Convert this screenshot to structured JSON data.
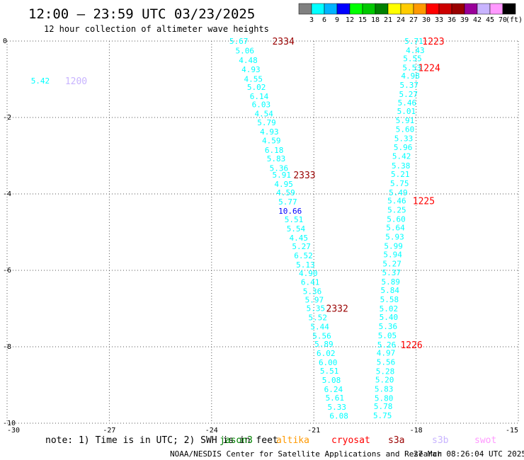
{
  "title": "12:00 – 23:59 UTC 03/23/2025",
  "subtitle": "12 hour collection of altimeter wave heights",
  "footer_note": "note:  1) Time is in UTC; 2) SWH is in feet",
  "credit": "NOAA/NESDIS Center for Satellite Applications and Research",
  "timestamp": "27 Mar 08:26:04 UTC 2025",
  "missions": [
    {
      "name": "jason3",
      "color": "#008000"
    },
    {
      "name": "altika",
      "color": "#ff9900"
    },
    {
      "name": "cryosat",
      "color": "#ff0000"
    },
    {
      "name": "s3a",
      "color": "#990000"
    },
    {
      "name": "s3b",
      "color": "#c8b4ff"
    },
    {
      "name": "swot",
      "color": "#ff99ff"
    }
  ],
  "colorbar": {
    "colors": [
      "#808080",
      "#00ffff",
      "#00b4ff",
      "#0000ff",
      "#00ff00",
      "#00c800",
      "#008000",
      "#ffff00",
      "#ffcc00",
      "#ff9900",
      "#ff0000",
      "#cc0000",
      "#990000",
      "#990099",
      "#c8b4ff",
      "#ff99ff",
      "#000000"
    ],
    "labels": [
      "3",
      "6",
      "9",
      "12",
      "15",
      "18",
      "21",
      "24",
      "27",
      "30",
      "33",
      "36",
      "39",
      "42",
      "45",
      "70"
    ],
    "unit": "(ft)"
  },
  "chart_data": {
    "type": "scatter",
    "xlim": [
      -30,
      -15
    ],
    "ylim": [
      -10,
      0
    ],
    "xticks": [
      "-30",
      "-27",
      "-24",
      "-21",
      "-18",
      "-15"
    ],
    "yticks": [
      "0",
      "-2",
      "-4",
      "-6",
      "-8",
      "-10"
    ],
    "grid": true,
    "points": [
      {
        "x": -29.3,
        "y": -1.04,
        "label": "5.42",
        "color": "#00ffff"
      },
      {
        "x": -23.48,
        "y": 0.0,
        "label": "5.67",
        "color": "#00ffff"
      },
      {
        "x": -23.3,
        "y": -0.25,
        "label": "5.06",
        "color": "#00ffff"
      },
      {
        "x": -23.2,
        "y": -0.5,
        "label": "4.48",
        "color": "#00ffff"
      },
      {
        "x": -23.12,
        "y": -0.74,
        "label": "4.93",
        "color": "#00ffff"
      },
      {
        "x": -23.05,
        "y": -0.99,
        "label": "4.55",
        "color": "#00ffff"
      },
      {
        "x": -22.96,
        "y": -1.2,
        "label": "5.02",
        "color": "#00ffff"
      },
      {
        "x": -22.88,
        "y": -1.44,
        "label": "6.14",
        "color": "#00ffff"
      },
      {
        "x": -22.82,
        "y": -1.66,
        "label": "6.03",
        "color": "#00ffff"
      },
      {
        "x": -22.74,
        "y": -1.9,
        "label": "4.54",
        "color": "#00ffff"
      },
      {
        "x": -22.66,
        "y": -2.13,
        "label": "5.79",
        "color": "#00ffff"
      },
      {
        "x": -22.58,
        "y": -2.37,
        "label": "4.93",
        "color": "#00ffff"
      },
      {
        "x": -22.52,
        "y": -2.6,
        "label": "4.59",
        "color": "#00ffff"
      },
      {
        "x": -22.44,
        "y": -2.85,
        "label": "6.18",
        "color": "#00ffff"
      },
      {
        "x": -22.38,
        "y": -3.07,
        "label": "5.83",
        "color": "#00ffff"
      },
      {
        "x": -22.3,
        "y": -3.32,
        "label": "5.36",
        "color": "#00ffff"
      },
      {
        "x": -22.22,
        "y": -3.5,
        "label": "5.91",
        "color": "#00ffff"
      },
      {
        "x": -22.16,
        "y": -3.74,
        "label": "4.95",
        "color": "#00ffff"
      },
      {
        "x": -22.1,
        "y": -3.96,
        "label": "4.59",
        "color": "#00ffff"
      },
      {
        "x": -22.04,
        "y": -4.2,
        "label": "5.77",
        "color": "#00ffff"
      },
      {
        "x": -22.04,
        "y": -4.44,
        "label": "10.66",
        "color": "#0000ff"
      },
      {
        "x": -21.86,
        "y": -4.67,
        "label": "5.51",
        "color": "#00ffff"
      },
      {
        "x": -21.8,
        "y": -4.91,
        "label": "5.54",
        "color": "#00ffff"
      },
      {
        "x": -21.72,
        "y": -5.15,
        "label": "4.45",
        "color": "#00ffff"
      },
      {
        "x": -21.64,
        "y": -5.37,
        "label": "5.27",
        "color": "#00ffff"
      },
      {
        "x": -21.58,
        "y": -5.61,
        "label": "6.52",
        "color": "#00ffff"
      },
      {
        "x": -21.52,
        "y": -5.85,
        "label": "5.13",
        "color": "#00ffff"
      },
      {
        "x": -21.44,
        "y": -6.07,
        "label": "4.90",
        "color": "#00ffff"
      },
      {
        "x": -21.38,
        "y": -6.31,
        "label": "6.41",
        "color": "#00ffff"
      },
      {
        "x": -21.32,
        "y": -6.55,
        "label": "5.36",
        "color": "#00ffff"
      },
      {
        "x": -21.26,
        "y": -6.77,
        "label": "5.97",
        "color": "#00ffff"
      },
      {
        "x": -21.22,
        "y": -6.99,
        "label": "5.35",
        "color": "#00ffff"
      },
      {
        "x": -21.16,
        "y": -7.23,
        "label": "5.52",
        "color": "#00ffff"
      },
      {
        "x": -21.1,
        "y": -7.47,
        "label": "5.44",
        "color": "#00ffff"
      },
      {
        "x": -21.04,
        "y": -7.71,
        "label": "5.56",
        "color": "#00ffff"
      },
      {
        "x": -20.98,
        "y": -7.93,
        "label": "5.89",
        "color": "#00ffff"
      },
      {
        "x": -20.92,
        "y": -8.17,
        "label": "6.02",
        "color": "#00ffff"
      },
      {
        "x": -20.86,
        "y": -8.41,
        "label": "6.00",
        "color": "#00ffff"
      },
      {
        "x": -20.82,
        "y": -8.63,
        "label": "5.51",
        "color": "#00ffff"
      },
      {
        "x": -20.76,
        "y": -8.87,
        "label": "5.08",
        "color": "#00ffff"
      },
      {
        "x": -20.7,
        "y": -9.11,
        "label": "6.24",
        "color": "#00ffff"
      },
      {
        "x": -20.66,
        "y": -9.33,
        "label": "5.61",
        "color": "#00ffff"
      },
      {
        "x": -20.6,
        "y": -9.57,
        "label": "5.33",
        "color": "#00ffff"
      },
      {
        "x": -20.54,
        "y": -9.81,
        "label": "6.08",
        "color": "#00ffff"
      },
      {
        "x": -18.34,
        "y": 0.0,
        "label": "5.71",
        "color": "#00ffff"
      },
      {
        "x": -18.3,
        "y": -0.24,
        "label": "4.43",
        "color": "#00ffff"
      },
      {
        "x": -18.38,
        "y": -0.45,
        "label": "5.55",
        "color": "#00ffff"
      },
      {
        "x": -18.4,
        "y": -0.69,
        "label": "5.53",
        "color": "#00ffff"
      },
      {
        "x": -18.44,
        "y": -0.91,
        "label": "4.98",
        "color": "#00ffff"
      },
      {
        "x": -18.48,
        "y": -1.15,
        "label": "5.37",
        "color": "#00ffff"
      },
      {
        "x": -18.5,
        "y": -1.39,
        "label": "5.27",
        "color": "#00ffff"
      },
      {
        "x": -18.54,
        "y": -1.61,
        "label": "5.46",
        "color": "#00ffff"
      },
      {
        "x": -18.56,
        "y": -1.83,
        "label": "5.01",
        "color": "#00ffff"
      },
      {
        "x": -18.6,
        "y": -2.07,
        "label": "5.91",
        "color": "#00ffff"
      },
      {
        "x": -18.6,
        "y": -2.31,
        "label": "5.60",
        "color": "#00ffff"
      },
      {
        "x": -18.64,
        "y": -2.55,
        "label": "5.33",
        "color": "#00ffff"
      },
      {
        "x": -18.66,
        "y": -2.78,
        "label": "5.96",
        "color": "#00ffff"
      },
      {
        "x": -18.7,
        "y": -3.01,
        "label": "5.42",
        "color": "#00ffff"
      },
      {
        "x": -18.72,
        "y": -3.26,
        "label": "5.38",
        "color": "#00ffff"
      },
      {
        "x": -18.74,
        "y": -3.48,
        "label": "5.21",
        "color": "#00ffff"
      },
      {
        "x": -18.76,
        "y": -3.72,
        "label": "5.75",
        "color": "#00ffff"
      },
      {
        "x": -18.8,
        "y": -3.96,
        "label": "5.49",
        "color": "#00ffff"
      },
      {
        "x": -18.84,
        "y": -4.18,
        "label": "5.46",
        "color": "#00ffff"
      },
      {
        "x": -18.84,
        "y": -4.42,
        "label": "5.25",
        "color": "#00ffff"
      },
      {
        "x": -18.86,
        "y": -4.66,
        "label": "5.60",
        "color": "#00ffff"
      },
      {
        "x": -18.88,
        "y": -4.88,
        "label": "5.64",
        "color": "#00ffff"
      },
      {
        "x": -18.9,
        "y": -5.12,
        "label": "5.93",
        "color": "#00ffff"
      },
      {
        "x": -18.94,
        "y": -5.36,
        "label": "5.99",
        "color": "#00ffff"
      },
      {
        "x": -18.96,
        "y": -5.58,
        "label": "5.94",
        "color": "#00ffff"
      },
      {
        "x": -18.98,
        "y": -5.82,
        "label": "5.27",
        "color": "#00ffff"
      },
      {
        "x": -19.0,
        "y": -6.06,
        "label": "5.37",
        "color": "#00ffff"
      },
      {
        "x": -19.02,
        "y": -6.3,
        "label": "5.89",
        "color": "#00ffff"
      },
      {
        "x": -19.04,
        "y": -6.52,
        "label": "5.84",
        "color": "#00ffff"
      },
      {
        "x": -19.06,
        "y": -6.76,
        "label": "5.58",
        "color": "#00ffff"
      },
      {
        "x": -19.08,
        "y": -7.0,
        "label": "5.02",
        "color": "#00ffff"
      },
      {
        "x": -19.08,
        "y": -7.22,
        "label": "5.40",
        "color": "#00ffff"
      },
      {
        "x": -19.1,
        "y": -7.46,
        "label": "5.36",
        "color": "#00ffff"
      },
      {
        "x": -19.12,
        "y": -7.7,
        "label": "5.05",
        "color": "#00ffff"
      },
      {
        "x": -19.14,
        "y": -7.94,
        "label": "5.26",
        "color": "#00ffff"
      },
      {
        "x": -19.16,
        "y": -8.16,
        "label": "4.97",
        "color": "#00ffff"
      },
      {
        "x": -19.16,
        "y": -8.4,
        "label": "5.56",
        "color": "#00ffff"
      },
      {
        "x": -19.18,
        "y": -8.64,
        "label": "5.28",
        "color": "#00ffff"
      },
      {
        "x": -19.2,
        "y": -8.86,
        "label": "5.20",
        "color": "#00ffff"
      },
      {
        "x": -19.22,
        "y": -9.1,
        "label": "5.83",
        "color": "#00ffff"
      },
      {
        "x": -19.22,
        "y": -9.34,
        "label": "5.80",
        "color": "#00ffff"
      },
      {
        "x": -19.24,
        "y": -9.56,
        "label": "5.78",
        "color": "#00ffff"
      },
      {
        "x": -19.26,
        "y": -9.8,
        "label": "5.75",
        "color": "#00ffff"
      }
    ],
    "pass_labels": [
      {
        "x": -28.3,
        "y": -1.04,
        "label": "1200",
        "color": "#c8b4ff"
      },
      {
        "x": -22.22,
        "y": 0.0,
        "label": "2334",
        "color": "#990000"
      },
      {
        "x": -21.6,
        "y": -3.5,
        "label": "2333",
        "color": "#990000"
      },
      {
        "x": -20.64,
        "y": -6.99,
        "label": "2332",
        "color": "#990000"
      },
      {
        "x": -17.82,
        "y": 0.0,
        "label": "1223",
        "color": "#ff0000"
      },
      {
        "x": -17.94,
        "y": -0.69,
        "label": "1224",
        "color": "#ff0000"
      },
      {
        "x": -18.1,
        "y": -4.18,
        "label": "1225",
        "color": "#ff0000"
      },
      {
        "x": -18.46,
        "y": -7.94,
        "label": "1226",
        "color": "#ff0000"
      }
    ]
  }
}
